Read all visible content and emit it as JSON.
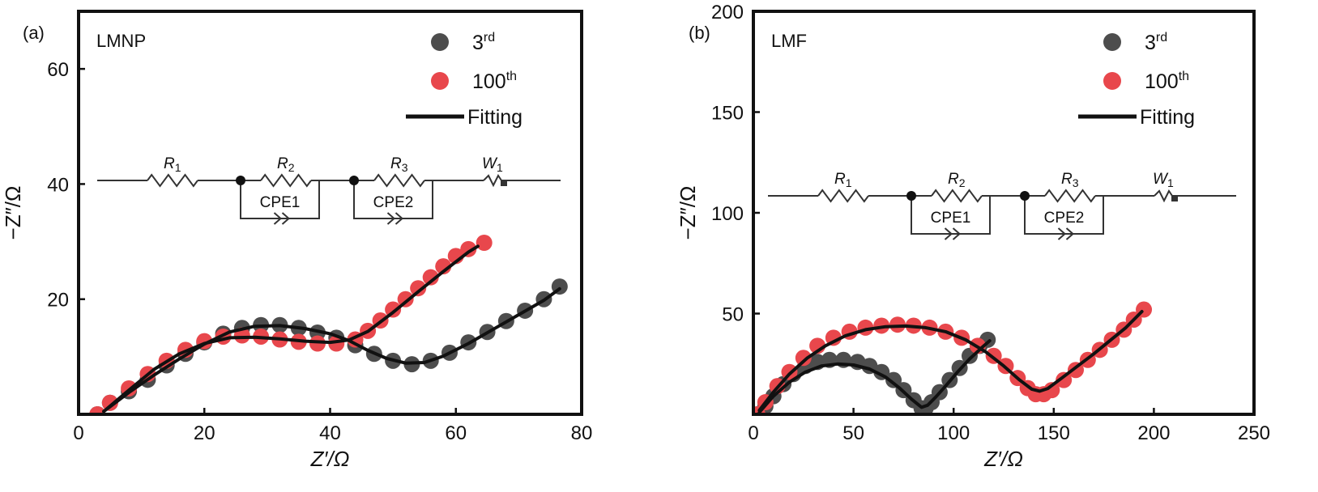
{
  "chart_data": [
    {
      "panel_label": "(a)",
      "sample_label": "LMNP",
      "type": "scatter",
      "xlabel": "Z′/Ω",
      "ylabel": "−Z″/Ω",
      "xlim": [
        0,
        80
      ],
      "ylim": [
        0,
        70
      ],
      "xticks": [
        0,
        20,
        40,
        60,
        80
      ],
      "yticks": [
        20,
        40,
        60
      ],
      "legend_position": "top-right",
      "series": [
        {
          "name": "3",
          "sup": "rd",
          "color": "#4d4d4d",
          "points": [
            [
              3,
              0
            ],
            [
              5,
              2
            ],
            [
              8,
              4
            ],
            [
              11,
              6
            ],
            [
              14,
              8.5
            ],
            [
              17,
              10.5
            ],
            [
              20,
              12.5
            ],
            [
              23,
              14
            ],
            [
              26,
              15
            ],
            [
              29,
              15.5
            ],
            [
              32,
              15.5
            ],
            [
              35,
              15
            ],
            [
              38,
              14.2
            ],
            [
              41,
              13.3
            ],
            [
              44,
              12
            ],
            [
              47,
              10.5
            ],
            [
              50,
              9.3
            ],
            [
              53,
              8.7
            ],
            [
              56,
              9.3
            ],
            [
              59,
              10.7
            ],
            [
              62,
              12.5
            ],
            [
              65,
              14.3
            ],
            [
              68,
              16.2
            ],
            [
              71,
              18
            ],
            [
              74,
              20
            ],
            [
              76.5,
              22.2
            ]
          ]
        },
        {
          "name": "100",
          "sup": "th",
          "color": "#e8474c",
          "points": [
            [
              3,
              0
            ],
            [
              5,
              2
            ],
            [
              8,
              4.5
            ],
            [
              11,
              7
            ],
            [
              14,
              9.3
            ],
            [
              17,
              11.2
            ],
            [
              20,
              12.7
            ],
            [
              23,
              13.5
            ],
            [
              26,
              13.7
            ],
            [
              29,
              13.5
            ],
            [
              32,
              13
            ],
            [
              35,
              12.6
            ],
            [
              38,
              12.3
            ],
            [
              41,
              12.3
            ],
            [
              44,
              13
            ],
            [
              46,
              14.5
            ],
            [
              48,
              16.3
            ],
            [
              50,
              18.2
            ],
            [
              52,
              20
            ],
            [
              54,
              21.9
            ],
            [
              56,
              23.8
            ],
            [
              58,
              25.7
            ],
            [
              60,
              27.5
            ],
            [
              62,
              28.7
            ],
            [
              64.5,
              29.8
            ]
          ]
        }
      ],
      "fitting": [
        {
          "name": "Fitting",
          "color": "#111111",
          "points": [
            [
              4,
              0.5
            ],
            [
              8,
              3.8
            ],
            [
              12,
              6.8
            ],
            [
              16,
              9.6
            ],
            [
              20,
              12.2
            ],
            [
              24,
              14.3
            ],
            [
              28,
              15.3
            ],
            [
              32,
              15.4
            ],
            [
              36,
              14.9
            ],
            [
              40,
              14
            ],
            [
              43,
              12.8
            ],
            [
              46,
              11.1
            ],
            [
              49,
              9.7
            ],
            [
              52,
              8.9
            ],
            [
              55,
              9
            ],
            [
              58,
              10.1
            ],
            [
              62,
              12.3
            ],
            [
              66,
              14.8
            ],
            [
              70,
              17.3
            ],
            [
              74,
              19.8
            ],
            [
              76.5,
              21.8
            ]
          ]
        },
        {
          "name": "",
          "color": "#111111",
          "points": [
            [
              4,
              0.5
            ],
            [
              8,
              4.2
            ],
            [
              12,
              7.8
            ],
            [
              16,
              10.5
            ],
            [
              20,
              12.3
            ],
            [
              24,
              13.3
            ],
            [
              28,
              13.4
            ],
            [
              32,
              13.1
            ],
            [
              36,
              12.7
            ],
            [
              40,
              12.5
            ],
            [
              43,
              12.9
            ],
            [
              46,
              14.4
            ],
            [
              50,
              17.7
            ],
            [
              54,
              21.3
            ],
            [
              58,
              24.8
            ],
            [
              62,
              28.2
            ],
            [
              63.5,
              29.2
            ]
          ]
        }
      ],
      "legend": {
        "fitting_label": "Fitting"
      },
      "circuit": {
        "r1": "R",
        "r1_sub": "1",
        "r2": "R",
        "r2_sub": "2",
        "r3": "R",
        "r3_sub": "3",
        "w1": "W",
        "w1_sub": "1",
        "cpe1": "CPE1",
        "cpe2": "CPE2"
      }
    },
    {
      "panel_label": "(b)",
      "sample_label": "LMF",
      "type": "scatter",
      "xlabel": "Z′/Ω",
      "ylabel": "−Z″/Ω",
      "xlim": [
        0,
        250
      ],
      "ylim": [
        0,
        200
      ],
      "xticks": [
        0,
        50,
        100,
        150,
        200,
        250
      ],
      "yticks": [
        50,
        100,
        150,
        200
      ],
      "legend_position": "top-right",
      "series": [
        {
          "name": "3",
          "sup": "rd",
          "color": "#4d4d4d",
          "points": [
            [
              2,
              0
            ],
            [
              6,
              4
            ],
            [
              10,
              9
            ],
            [
              15,
              15
            ],
            [
              20,
              20
            ],
            [
              26,
              24
            ],
            [
              32,
              26
            ],
            [
              38,
              27
            ],
            [
              45,
              27
            ],
            [
              52,
              26
            ],
            [
              58,
              24
            ],
            [
              64,
              21
            ],
            [
              70,
              17
            ],
            [
              75,
              12
            ],
            [
              80,
              7
            ],
            [
              84,
              3
            ],
            [
              86,
              3
            ],
            [
              89,
              6
            ],
            [
              93,
              11
            ],
            [
              98,
              17
            ],
            [
              103,
              23
            ],
            [
              108,
              29
            ],
            [
              113,
              34
            ],
            [
              117,
              37
            ]
          ]
        },
        {
          "name": "100",
          "sup": "th",
          "color": "#e8474c",
          "points": [
            [
              2,
              0
            ],
            [
              6,
              6
            ],
            [
              12,
              14
            ],
            [
              18,
              21
            ],
            [
              25,
              28
            ],
            [
              32,
              34
            ],
            [
              40,
              38
            ],
            [
              48,
              41
            ],
            [
              56,
              43
            ],
            [
              64,
              44
            ],
            [
              72,
              44.5
            ],
            [
              80,
              44
            ],
            [
              88,
              43
            ],
            [
              96,
              41
            ],
            [
              104,
              38
            ],
            [
              112,
              34
            ],
            [
              120,
              29
            ],
            [
              126,
              24
            ],
            [
              132,
              18
            ],
            [
              137,
              13
            ],
            [
              141,
              10
            ],
            [
              145,
              10
            ],
            [
              149,
              12
            ],
            [
              155,
              17
            ],
            [
              161,
              22
            ],
            [
              167,
              27
            ],
            [
              173,
              32
            ],
            [
              179,
              37
            ],
            [
              185,
              42
            ],
            [
              190,
              47
            ],
            [
              195,
              52
            ]
          ]
        }
      ],
      "fitting": [
        {
          "name": "Fitting",
          "color": "#111111",
          "points": [
            [
              3,
              1
            ],
            [
              10,
              9
            ],
            [
              18,
              16
            ],
            [
              26,
              21
            ],
            [
              34,
              24
            ],
            [
              42,
              25
            ],
            [
              50,
              24.5
            ],
            [
              58,
              22.5
            ],
            [
              66,
              18.5
            ],
            [
              73,
              13
            ],
            [
              79,
              7.5
            ],
            [
              84,
              3.5
            ],
            [
              87,
              4.5
            ],
            [
              91,
              8.5
            ],
            [
              96,
              14
            ],
            [
              102,
              21
            ],
            [
              108,
              27.5
            ],
            [
              114,
              33
            ],
            [
              118,
              36.5
            ]
          ]
        },
        {
          "name": "",
          "color": "#111111",
          "points": [
            [
              3,
              2
            ],
            [
              10,
              11
            ],
            [
              18,
              20
            ],
            [
              27,
              28
            ],
            [
              36,
              34
            ],
            [
              46,
              39
            ],
            [
              56,
              42
            ],
            [
              66,
              43.5
            ],
            [
              76,
              43.8
            ],
            [
              86,
              43
            ],
            [
              96,
              41
            ],
            [
              106,
              37
            ],
            [
              116,
              31
            ],
            [
              125,
              24
            ],
            [
              133,
              17
            ],
            [
              139,
              12.5
            ],
            [
              143,
              11.5
            ],
            [
              147,
              12.8
            ],
            [
              154,
              18
            ],
            [
              162,
              24
            ],
            [
              170,
              30
            ],
            [
              178,
              36.5
            ],
            [
              186,
              43
            ],
            [
              194,
              51
            ]
          ]
        }
      ],
      "legend": {
        "fitting_label": "Fitting"
      },
      "circuit": {
        "r1": "R",
        "r1_sub": "1",
        "r2": "R",
        "r2_sub": "2",
        "r3": "R",
        "r3_sub": "3",
        "w1": "W",
        "w1_sub": "1",
        "cpe1": "CPE1",
        "cpe2": "CPE2"
      }
    }
  ]
}
